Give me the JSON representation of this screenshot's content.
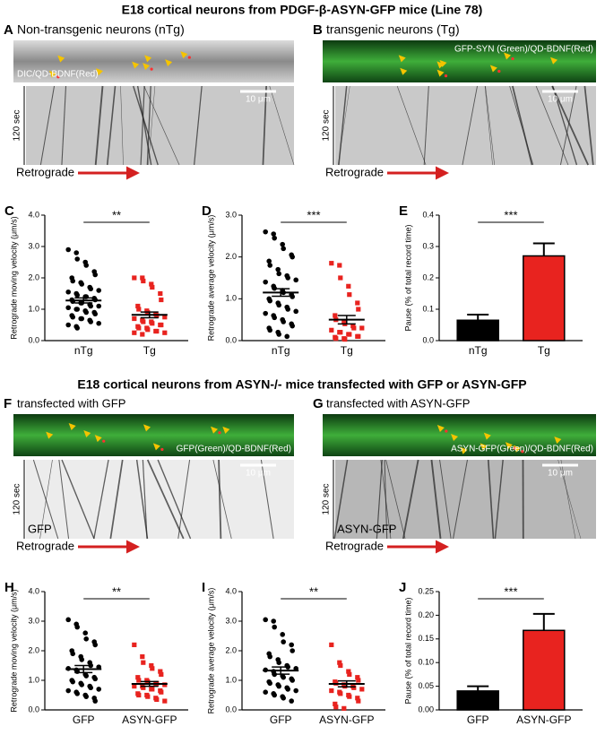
{
  "figure": {
    "titles": [
      "E18 cortical neurons from PDGF-β-ASYN-GFP mice (Line 78)",
      "E18 cortical neurons from ASYN-/- mice transfected with GFP or ASYN-GFP"
    ],
    "panels": [
      {
        "label": "A",
        "title": "Non-transgenic neurons (nTg)",
        "image_label": "DIC/QD-BDNF(Red)",
        "scale": "10 μm",
        "time": "120 sec",
        "direction": "Retrograde"
      },
      {
        "label": "B",
        "title": "transgenic neurons (Tg)",
        "image_label": "GFP-SYN (Green)/QD-BDNF(Red)",
        "scale": "10 μm",
        "time": "120 sec",
        "direction": "Retrograde"
      },
      {
        "label": "F",
        "title": "transfected with GFP",
        "image_label": "GFP(Green)/QD-BDNF(Red)",
        "scale": "10 μm",
        "time": "120 sec",
        "direction": "Retrograde",
        "kymo_label": "GFP"
      },
      {
        "label": "G",
        "title": "transfected with ASYN-GFP",
        "image_label": "ASYN-GFP(Green)/QD-BDNF(Red)",
        "scale": "10 μm",
        "time": "120 sec",
        "direction": "Retrograde",
        "kymo_label": "ASYN-GFP"
      }
    ]
  },
  "chart_data": [
    {
      "type": "dot",
      "panel": "C",
      "ylabel": "Retrograde moving velocity (μm/s)",
      "significance": "**",
      "ylim": [
        0,
        4
      ],
      "yticks": [
        {
          "value": 0,
          "label": "0.0"
        },
        {
          "value": 1,
          "label": "1.0"
        },
        {
          "value": 2,
          "label": "2.0"
        },
        {
          "value": 3,
          "label": "3.0"
        },
        {
          "value": 4,
          "label": "4.0"
        }
      ],
      "series": [
        {
          "name": "nTg",
          "color": "#000000",
          "marker": "circle",
          "mean": 1.28,
          "sem": 0.08,
          "values": [
            2.9,
            2.8,
            2.6,
            2.5,
            2.4,
            2.2,
            2.1,
            2.0,
            1.9,
            1.85,
            1.8,
            1.7,
            1.65,
            1.6,
            1.55,
            1.5,
            1.45,
            1.4,
            1.4,
            1.35,
            1.3,
            1.3,
            1.25,
            1.2,
            1.2,
            1.15,
            1.1,
            1.1,
            1.05,
            1.0,
            1.0,
            0.95,
            0.9,
            0.9,
            0.85,
            0.8,
            0.75,
            0.7,
            0.7,
            0.65,
            0.6,
            0.55,
            0.5,
            0.45,
            0.4
          ]
        },
        {
          "name": "Tg",
          "color": "#e8231f",
          "marker": "square",
          "mean": 0.82,
          "sem": 0.09,
          "values": [
            2.0,
            2.0,
            1.9,
            1.8,
            1.7,
            1.5,
            1.3,
            1.1,
            1.0,
            0.95,
            0.9,
            0.85,
            0.8,
            0.75,
            0.7,
            0.65,
            0.6,
            0.6,
            0.55,
            0.5,
            0.5,
            0.45,
            0.4,
            0.4,
            0.35,
            0.3,
            0.3,
            0.25,
            0.25,
            0.2
          ]
        }
      ]
    },
    {
      "type": "dot",
      "panel": "D",
      "ylabel": "Retrograde average velocity (μm/s)",
      "significance": "***",
      "ylim": [
        0,
        3
      ],
      "yticks": [
        {
          "value": 0,
          "label": "0.0"
        },
        {
          "value": 1,
          "label": "1.0"
        },
        {
          "value": 2,
          "label": "2.0"
        },
        {
          "value": 3,
          "label": "3.0"
        }
      ],
      "series": [
        {
          "name": "nTg",
          "color": "#000000",
          "marker": "circle",
          "mean": 1.15,
          "sem": 0.09,
          "values": [
            2.6,
            2.55,
            2.45,
            2.3,
            2.2,
            2.05,
            2.0,
            1.9,
            1.8,
            1.7,
            1.6,
            1.55,
            1.5,
            1.45,
            1.4,
            1.3,
            1.25,
            1.2,
            1.15,
            1.1,
            1.05,
            1.0,
            0.95,
            0.9,
            0.85,
            0.8,
            0.75,
            0.7,
            0.65,
            0.6,
            0.55,
            0.5,
            0.45,
            0.4,
            0.35,
            0.3,
            0.25,
            0.2,
            0.15,
            0.1
          ]
        },
        {
          "name": "Tg",
          "color": "#e8231f",
          "marker": "square",
          "mean": 0.5,
          "sem": 0.1,
          "values": [
            1.85,
            1.8,
            1.5,
            1.3,
            1.1,
            0.9,
            0.75,
            0.6,
            0.5,
            0.45,
            0.4,
            0.35,
            0.3,
            0.3,
            0.25,
            0.2,
            0.2,
            0.15,
            0.15,
            0.1,
            0.1,
            0.08,
            0.05,
            0.05,
            0.03
          ]
        }
      ]
    },
    {
      "type": "bar",
      "panel": "E",
      "ylabel": "Pause (% of total record time)",
      "significance": "***",
      "ylim": [
        0,
        0.4
      ],
      "yticks": [
        {
          "value": 0,
          "label": "0.0"
        },
        0.1,
        0.2,
        0.3,
        0.4
      ],
      "categories": [
        "nTg",
        "Tg"
      ],
      "values": [
        0.065,
        0.27
      ],
      "errors": [
        0.018,
        0.04
      ],
      "colors": [
        "#000000",
        "#e8231f"
      ]
    },
    {
      "type": "dot",
      "panel": "H",
      "ylabel": "Retrograde moving velocity (μm/s)",
      "significance": "**",
      "ylim": [
        0,
        4
      ],
      "yticks": [
        {
          "value": 0,
          "label": "0.0"
        },
        {
          "value": 1,
          "label": "1.0"
        },
        {
          "value": 2,
          "label": "2.0"
        },
        {
          "value": 3,
          "label": "3.0"
        },
        {
          "value": 4,
          "label": "4.0"
        }
      ],
      "series": [
        {
          "name": "GFP",
          "color": "#000000",
          "marker": "circle",
          "mean": 1.38,
          "sem": 0.12,
          "values": [
            3.05,
            2.9,
            2.8,
            2.6,
            2.4,
            2.3,
            2.2,
            2.0,
            1.9,
            1.8,
            1.7,
            1.6,
            1.5,
            1.45,
            1.4,
            1.35,
            1.3,
            1.2,
            1.15,
            1.1,
            1.05,
            1.0,
            0.95,
            0.9,
            0.85,
            0.8,
            0.75,
            0.7,
            0.65,
            0.6,
            0.55,
            0.5,
            0.45,
            0.4,
            0.3
          ]
        },
        {
          "name": "ASYN-GFP",
          "color": "#e8231f",
          "marker": "square",
          "mean": 0.88,
          "sem": 0.08,
          "values": [
            2.2,
            1.8,
            1.6,
            1.5,
            1.4,
            1.3,
            1.2,
            1.1,
            1.0,
            1.0,
            0.95,
            0.9,
            0.9,
            0.85,
            0.8,
            0.8,
            0.75,
            0.7,
            0.7,
            0.65,
            0.6,
            0.55,
            0.5,
            0.5,
            0.45,
            0.4,
            0.35,
            0.3
          ]
        }
      ]
    },
    {
      "type": "dot",
      "panel": "I",
      "ylabel": "Retrograde average velocity (μm/s)",
      "significance": "**",
      "ylim": [
        0,
        4
      ],
      "yticks": [
        {
          "value": 0,
          "label": "0.0"
        },
        {
          "value": 1,
          "label": "1.0"
        },
        {
          "value": 2,
          "label": "2.0"
        },
        {
          "value": 3,
          "label": "3.0"
        },
        {
          "value": 4,
          "label": "4.0"
        }
      ],
      "series": [
        {
          "name": "GFP",
          "color": "#000000",
          "marker": "circle",
          "mean": 1.33,
          "sem": 0.12,
          "values": [
            3.05,
            3.0,
            2.8,
            2.55,
            2.3,
            2.2,
            2.0,
            1.9,
            1.8,
            1.7,
            1.6,
            1.5,
            1.45,
            1.4,
            1.35,
            1.3,
            1.2,
            1.15,
            1.1,
            1.05,
            1.0,
            0.95,
            0.9,
            0.85,
            0.8,
            0.75,
            0.7,
            0.65,
            0.6,
            0.55,
            0.5,
            0.45,
            0.4,
            0.3
          ]
        },
        {
          "name": "ASYN-GFP",
          "color": "#e8231f",
          "marker": "square",
          "mean": 0.88,
          "sem": 0.1,
          "values": [
            2.2,
            1.6,
            1.5,
            1.3,
            1.2,
            1.1,
            1.0,
            0.95,
            0.9,
            0.85,
            0.8,
            0.8,
            0.75,
            0.7,
            0.65,
            0.6,
            0.55,
            0.5,
            0.45,
            0.4,
            0.3,
            0.2,
            0.1,
            0.05
          ]
        }
      ]
    },
    {
      "type": "bar",
      "panel": "J",
      "ylabel": "Pause (% of total record time)",
      "significance": "***",
      "ylim": [
        0,
        0.25
      ],
      "yticks": [
        {
          "value": 0,
          "label": "0.00"
        },
        0.05,
        {
          "value": 0.1,
          "label": "0.10"
        },
        0.15,
        {
          "value": 0.2,
          "label": "0.20"
        },
        0.25
      ],
      "categories": [
        "GFP",
        "ASYN-GFP"
      ],
      "values": [
        0.04,
        0.168
      ],
      "errors": [
        0.01,
        0.035
      ],
      "colors": [
        "#000000",
        "#e8231f"
      ]
    }
  ]
}
